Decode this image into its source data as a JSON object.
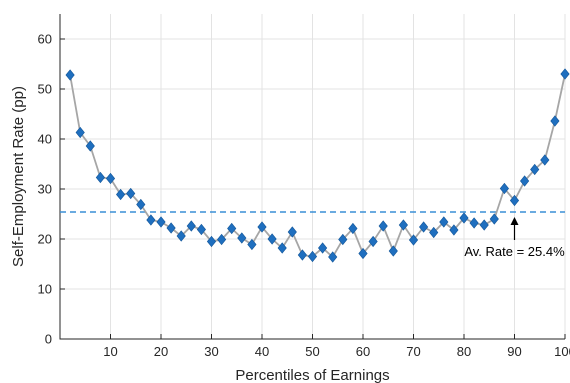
{
  "chart_data": {
    "type": "line",
    "xlabel": "Percentiles of Earnings",
    "ylabel": "Self-Employment Rate (pp)",
    "xlim": [
      0,
      100
    ],
    "ylim": [
      0,
      65
    ],
    "xticks": [
      10,
      20,
      30,
      40,
      50,
      60,
      70,
      80,
      90,
      100
    ],
    "yticks": [
      0,
      10,
      20,
      30,
      40,
      50,
      60
    ],
    "grid": true,
    "series": [
      {
        "marker": "diamond",
        "color": "#1f6fbf",
        "line_color": "#a6a6a6",
        "x": [
          2,
          4,
          6,
          8,
          10,
          12,
          14,
          16,
          18,
          20,
          22,
          24,
          26,
          28,
          30,
          32,
          34,
          36,
          38,
          40,
          42,
          44,
          46,
          48,
          50,
          52,
          54,
          56,
          58,
          60,
          62,
          64,
          66,
          68,
          70,
          72,
          74,
          76,
          78,
          80,
          82,
          84,
          86,
          88,
          90,
          92,
          94,
          96,
          98,
          100
        ],
        "y": [
          52.8,
          41.3,
          38.6,
          32.3,
          32.1,
          28.9,
          29.1,
          26.9,
          23.8,
          23.4,
          22.2,
          20.6,
          22.6,
          21.9,
          19.5,
          19.9,
          22.1,
          20.2,
          18.9,
          22.4,
          20.0,
          18.2,
          21.4,
          16.8,
          16.5,
          18.2,
          16.4,
          19.9,
          22.1,
          17.1,
          19.5,
          22.6,
          17.6,
          22.8,
          19.8,
          22.4,
          21.3,
          23.4,
          21.8,
          24.2,
          23.2,
          22.8,
          24.0,
          30.1,
          27.7,
          31.6,
          33.9,
          35.8,
          43.6,
          53.0
        ]
      }
    ],
    "reference_line": {
      "y": 25.4,
      "style": "dashed",
      "color": "#3a8fd6"
    },
    "annotation": {
      "text": "Av. Rate = 25.4%",
      "x": 90,
      "y": 25.4
    }
  }
}
